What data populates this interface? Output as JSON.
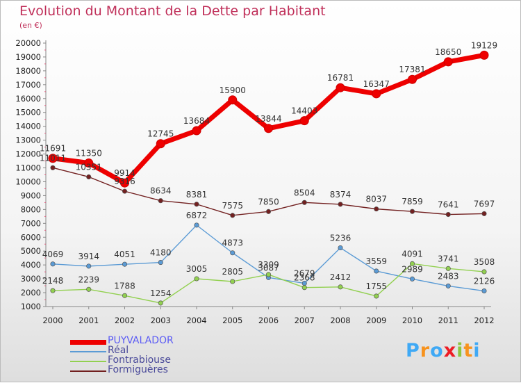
{
  "title": "Evolution du Montant de la Dette par Habitant",
  "subtitle": "(en €)",
  "logo": {
    "letters": [
      "P",
      "r",
      "o",
      "x",
      "i",
      "t",
      "i"
    ],
    "colors": [
      "#3fa9f5",
      "#f7931e",
      "#3fa9f5",
      "#ed1c24",
      "#8cc63f",
      "#f7931e",
      "#3fa9f5"
    ]
  },
  "chart_data": {
    "type": "line",
    "x": [
      "2000",
      "2001",
      "2002",
      "2003",
      "2004",
      "2005",
      "2006",
      "2007",
      "2008",
      "2009",
      "2010",
      "2011",
      "2012"
    ],
    "ylim": [
      1000,
      20000
    ],
    "yticks": [
      "1000",
      "2000",
      "3000",
      "4000",
      "5000",
      "6000",
      "7000",
      "8000",
      "9000",
      "10000",
      "11000",
      "12000",
      "13000",
      "14000",
      "15000",
      "16000",
      "17000",
      "18000",
      "19000",
      "20000"
    ],
    "grid": false,
    "legend_position": "bottom-left",
    "series": [
      {
        "name": "PUYVALADOR",
        "color": "#ee0000",
        "values": [
          11691,
          11350,
          9914,
          12745,
          13684,
          15900,
          13844,
          14403,
          16781,
          16347,
          17381,
          18650,
          19129
        ],
        "labels": [
          "11691",
          "11350",
          "9914",
          "12745",
          "13684",
          "15900",
          "13844",
          "14403",
          "16781",
          "16347",
          "17381",
          "18650",
          "19129"
        ]
      },
      {
        "name": "Réal",
        "color": "#5b9bd5",
        "values": [
          4069,
          3914,
          4051,
          4180,
          6872,
          4873,
          3087,
          2679,
          5236,
          3559,
          2989,
          2483,
          2126
        ],
        "labels": [
          "4069",
          "3914",
          "4051",
          "4180",
          "6872",
          "4873",
          "3087",
          "2679",
          "5236",
          "3559",
          "2989",
          "2483",
          "2126"
        ]
      },
      {
        "name": "Fontrabiouse",
        "color": "#92d050",
        "values": [
          2148,
          2239,
          1788,
          1254,
          3005,
          2805,
          3309,
          2368,
          2412,
          1755,
          4091,
          3741,
          3508
        ],
        "labels": [
          "2148",
          "2239",
          "1788",
          "1254",
          "3005",
          "2805",
          "3309",
          "2368",
          "2412",
          "1755",
          "4091",
          "3741",
          "3508"
        ]
      },
      {
        "name": "Formiguères",
        "color": "#722020",
        "values": [
          11011,
          10351,
          9316,
          8634,
          8381,
          7575,
          7850,
          8504,
          8374,
          8037,
          7859,
          7641,
          7697
        ],
        "labels": [
          "11011",
          "10351",
          "9316",
          "8634",
          "8381",
          "7575",
          "7850",
          "8504",
          "8374",
          "8037",
          "7859",
          "7641",
          "7697"
        ]
      }
    ]
  }
}
